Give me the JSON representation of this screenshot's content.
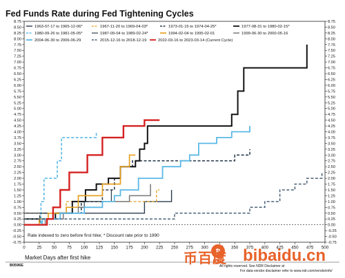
{
  "chart_data": {
    "type": "line",
    "title": "Fed Funds Rate during Fed Tightening Cycles",
    "xlabel": "Market Days after first hike",
    "ylabel": "",
    "xlim": [
      0,
      500
    ],
    "ylim": [
      -0.75,
      8.75
    ],
    "x_ticks": [
      0,
      25,
      50,
      75,
      100,
      125,
      150,
      175,
      200,
      225,
      250,
      275,
      300,
      325,
      350,
      375,
      400,
      425,
      450,
      475,
      500
    ],
    "y_ticks": [
      -0.75,
      -0.5,
      -0.25,
      0.0,
      0.25,
      0.5,
      0.75,
      1.0,
      1.25,
      1.5,
      1.75,
      2.0,
      2.25,
      2.5,
      2.75,
      3.0,
      3.25,
      3.5,
      3.75,
      4.0,
      4.25,
      4.5,
      4.75,
      5.0,
      5.25,
      5.5,
      5.75,
      6.0,
      6.25,
      6.5,
      6.75,
      7.0,
      7.25,
      7.5,
      7.75,
      8.0,
      8.25,
      8.5,
      8.75
    ],
    "grid": false,
    "legend_position": "top-left",
    "note": "Rate indexed to zero before first hike; * Discount rate prior to 1990",
    "series": [
      {
        "name": "1963-07-17 to 1965-12-06*",
        "color": "#2a3b4c",
        "dash": "solid",
        "width": 1.4,
        "points": [
          [
            0,
            0.5
          ],
          [
            200,
            0.5
          ],
          [
            200,
            1.0
          ],
          [
            245,
            1.0
          ],
          [
            245,
            1.5
          ]
        ]
      },
      {
        "name": "1967-11-20 to 1969-04-03*",
        "color": "#e6a020",
        "dash": "dash",
        "width": 1.3,
        "points": [
          [
            0,
            0.5
          ],
          [
            70,
            0.5
          ],
          [
            70,
            1.0
          ],
          [
            220,
            1.0
          ],
          [
            220,
            1.5
          ],
          [
            225,
            1.5
          ]
        ]
      },
      {
        "name": "1973-01-15 to 1974-04-25*",
        "color": "#2a3b4c",
        "dash": "dash",
        "width": 1.6,
        "points": [
          [
            0,
            0.0
          ],
          [
            26,
            0.0
          ],
          [
            26,
            0.5
          ],
          [
            95,
            0.5
          ],
          [
            95,
            1.0
          ],
          [
            130,
            1.0
          ],
          [
            130,
            1.5
          ],
          [
            150,
            1.5
          ],
          [
            150,
            2.0
          ],
          [
            160,
            2.0
          ],
          [
            160,
            2.5
          ],
          [
            180,
            2.5
          ],
          [
            180,
            2.75
          ],
          [
            350,
            2.75
          ],
          [
            350,
            3.0
          ],
          [
            375,
            3.0
          ],
          [
            375,
            3.25
          ]
        ]
      },
      {
        "name": "1977-08-31 to 1980-02-15*",
        "color": "#111111",
        "dash": "solid",
        "width": 2.0,
        "points": [
          [
            0,
            0.25
          ],
          [
            52,
            0.25
          ],
          [
            52,
            0.5
          ],
          [
            80,
            0.5
          ],
          [
            80,
            1.0
          ],
          [
            102,
            1.0
          ],
          [
            102,
            1.5
          ],
          [
            120,
            1.5
          ],
          [
            120,
            1.75
          ],
          [
            140,
            1.75
          ],
          [
            140,
            2.0
          ],
          [
            160,
            2.0
          ],
          [
            160,
            2.5
          ],
          [
            185,
            2.5
          ],
          [
            185,
            2.75
          ],
          [
            192,
            2.75
          ],
          [
            192,
            3.25
          ],
          [
            200,
            3.25
          ],
          [
            200,
            3.5
          ],
          [
            205,
            3.5
          ],
          [
            205,
            4.25
          ],
          [
            345,
            4.25
          ],
          [
            345,
            4.75
          ],
          [
            355,
            4.75
          ],
          [
            355,
            5.75
          ],
          [
            365,
            5.75
          ],
          [
            365,
            6.75
          ],
          [
            470,
            6.75
          ],
          [
            470,
            7.75
          ]
        ]
      },
      {
        "name": "1980-09-26 to 1981-05-05*",
        "color": "#5ab8e6",
        "dash": "dash",
        "width": 1.6,
        "points": [
          [
            0,
            0.0
          ],
          [
            28,
            0.0
          ],
          [
            28,
            1.0
          ],
          [
            33,
            1.0
          ],
          [
            33,
            2.0
          ],
          [
            55,
            2.0
          ],
          [
            55,
            2.75
          ],
          [
            62,
            2.75
          ],
          [
            62,
            3.75
          ],
          [
            120,
            3.75
          ],
          [
            120,
            4.0
          ]
        ]
      },
      {
        "name": "1987-09-04 to 1989-02-24*",
        "color": "#2a3b4c",
        "dash": "solid",
        "width": 1.2,
        "points": [
          [
            0,
            0.5
          ],
          [
            100,
            0.5
          ],
          [
            100,
            1.0
          ],
          [
            145,
            1.0
          ],
          [
            145,
            1.5
          ]
        ]
      },
      {
        "name": "1994-02-04 to 1995-02-01",
        "color": "#e6a020",
        "dash": "solid",
        "width": 1.7,
        "points": [
          [
            0,
            0.0
          ],
          [
            25,
            0.0
          ],
          [
            25,
            0.25
          ],
          [
            40,
            0.25
          ],
          [
            40,
            0.5
          ],
          [
            70,
            0.5
          ],
          [
            70,
            0.75
          ],
          [
            90,
            0.75
          ],
          [
            90,
            1.25
          ],
          [
            130,
            1.25
          ],
          [
            130,
            1.75
          ],
          [
            160,
            1.75
          ],
          [
            160,
            2.5
          ],
          [
            175,
            2.5
          ],
          [
            175,
            3.0
          ],
          [
            185,
            3.0
          ]
        ]
      },
      {
        "name": "1999-06-30 to 2000-05-16",
        "color": "#777777",
        "dash": "solid",
        "width": 1.5,
        "points": [
          [
            0,
            0.0
          ],
          [
            35,
            0.0
          ],
          [
            35,
            0.25
          ],
          [
            65,
            0.25
          ],
          [
            65,
            0.5
          ],
          [
            90,
            0.5
          ],
          [
            90,
            0.75
          ],
          [
            130,
            0.75
          ],
          [
            130,
            1.0
          ],
          [
            175,
            1.0
          ],
          [
            175,
            1.25
          ],
          [
            210,
            1.25
          ],
          [
            210,
            1.75
          ]
        ]
      },
      {
        "name": "2004-06-30 to 2006-06-29",
        "color": "#5ab8e6",
        "dash": "solid",
        "width": 1.8,
        "points": [
          [
            0,
            0.0
          ],
          [
            30,
            0.0
          ],
          [
            30,
            0.25
          ],
          [
            60,
            0.25
          ],
          [
            60,
            0.5
          ],
          [
            100,
            0.5
          ],
          [
            100,
            0.75
          ],
          [
            130,
            0.75
          ],
          [
            130,
            1.0
          ],
          [
            150,
            1.0
          ],
          [
            150,
            1.25
          ],
          [
            160,
            1.25
          ],
          [
            160,
            1.5
          ],
          [
            190,
            1.5
          ],
          [
            190,
            2.0
          ],
          [
            230,
            2.0
          ],
          [
            230,
            2.5
          ],
          [
            260,
            2.5
          ],
          [
            260,
            2.75
          ],
          [
            275,
            2.75
          ],
          [
            275,
            3.0
          ],
          [
            290,
            3.0
          ],
          [
            290,
            3.5
          ],
          [
            320,
            3.5
          ],
          [
            320,
            3.75
          ],
          [
            345,
            3.75
          ],
          [
            345,
            4.0
          ],
          [
            375,
            4.0
          ],
          [
            375,
            4.25
          ]
        ]
      },
      {
        "name": "2015-12-16 to 2018-12-19",
        "color": "#4a6076",
        "dash": "dash",
        "width": 1.5,
        "points": [
          [
            0,
            0.25
          ],
          [
            250,
            0.25
          ],
          [
            250,
            0.5
          ],
          [
            375,
            0.5
          ],
          [
            375,
            0.75
          ],
          [
            400,
            0.75
          ],
          [
            400,
            1.0
          ],
          [
            425,
            1.0
          ],
          [
            425,
            1.5
          ],
          [
            450,
            1.5
          ],
          [
            450,
            1.75
          ],
          [
            470,
            1.75
          ],
          [
            470,
            2.0
          ],
          [
            495,
            2.0
          ],
          [
            495,
            2.25
          ]
        ]
      },
      {
        "name": "2022-03-16 to 2023-03-14 (Current Cycle)",
        "color": "#d42020",
        "dash": "solid",
        "width": 2.4,
        "points": [
          [
            0,
            0.0
          ],
          [
            38,
            0.0
          ],
          [
            38,
            0.25
          ],
          [
            48,
            0.25
          ],
          [
            48,
            0.75
          ],
          [
            60,
            0.75
          ],
          [
            60,
            1.5
          ],
          [
            75,
            1.5
          ],
          [
            75,
            2.25
          ],
          [
            105,
            2.25
          ],
          [
            105,
            3.0
          ],
          [
            130,
            3.0
          ],
          [
            130,
            3.75
          ],
          [
            165,
            3.75
          ],
          [
            165,
            4.25
          ],
          [
            200,
            4.25
          ],
          [
            200,
            4.5
          ],
          [
            225,
            4.5
          ]
        ]
      }
    ]
  },
  "footer": {
    "code": "B0596E",
    "disclaimer_line1": "All rights reserved. See NDR Disclaimer at",
    "disclaimer_line2": "For data vendor disclaimer refer to www.ndr.com/vendorinfo/"
  },
  "watermark": {
    "logo_text": "NDR",
    "cn_text": "币百度",
    "url_text": "bibaidu.cn",
    "color": "#e8622a"
  }
}
